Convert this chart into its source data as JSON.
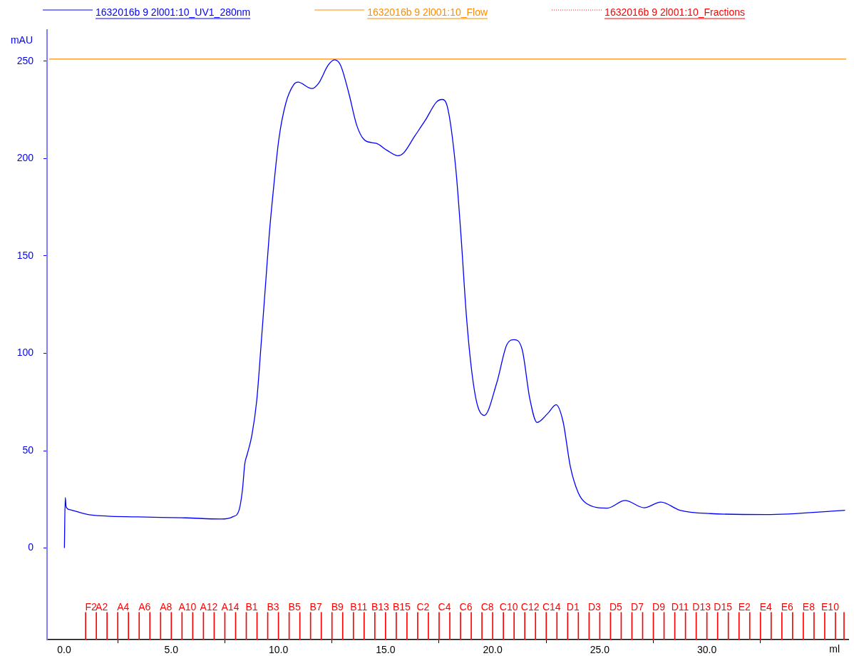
{
  "chart_data": {
    "type": "line",
    "xlabel": "ml",
    "ylabel": "mAU",
    "legend": "top left",
    "grid": false,
    "marker": "none",
    "line_style": "solid",
    "xlim": [
      -0.8,
      36.6
    ],
    "xticks": [
      {
        "value": 0,
        "label": "0.0"
      },
      {
        "value": 5,
        "label": "5.0"
      },
      {
        "value": 10,
        "label": "10.0"
      },
      {
        "value": 15,
        "label": "15.0"
      },
      {
        "value": 20,
        "label": "20.0"
      },
      {
        "value": 25,
        "label": "25.0"
      },
      {
        "value": 30,
        "label": "30.0"
      }
    ],
    "ylim": [
      -47,
      266
    ],
    "yticks": [
      0,
      50,
      100,
      150,
      200,
      250
    ],
    "series": [
      {
        "name": "1632016b 9 2l001:10_UV1_280nm",
        "color": "#0000ff",
        "x": [
          0.01,
          0.05,
          0.09,
          0.24,
          1.23,
          3.44,
          5.66,
          7.33,
          7.88,
          8.16,
          8.32,
          8.43,
          8.54,
          8.76,
          8.99,
          9.19,
          9.38,
          9.57,
          9.77,
          10.02,
          10.34,
          10.72,
          10.91,
          11.56,
          11.88,
          12.32,
          12.62,
          12.9,
          13.28,
          13.66,
          14.05,
          14.56,
          15.07,
          15.58,
          15.84,
          16.35,
          16.86,
          17.37,
          17.63,
          17.88,
          18.27,
          18.52,
          18.78,
          19.03,
          19.29,
          19.61,
          20.19,
          20.66,
          21.0,
          21.38,
          21.73,
          22.07,
          22.57,
          22.96,
          23.28,
          23.63,
          23.99,
          24.35,
          25.35,
          26.18,
          27.07,
          27.85,
          28.74,
          30.16,
          32.77,
          36.45
        ],
        "values": [
          0,
          26,
          21.2,
          19.8,
          17,
          16,
          15.5,
          14.9,
          16.1,
          19.4,
          29.8,
          43.2,
          48,
          57.8,
          76,
          104.3,
          132.5,
          160.7,
          184.5,
          209.9,
          228.2,
          238,
          239.2,
          235.9,
          238.7,
          247.9,
          250.7,
          247.9,
          233.8,
          216.9,
          209.2,
          207.8,
          204.2,
          201.4,
          202.8,
          211.3,
          219.7,
          228.9,
          230.3,
          226.8,
          195.8,
          160.7,
          118.4,
          90.2,
          73.3,
          68.1,
          84.8,
          104.4,
          107,
          101.8,
          76.9,
          64.5,
          69.1,
          73.6,
          65.2,
          41.6,
          28.5,
          23.1,
          20.5,
          24.4,
          20.7,
          23.6,
          19.4,
          17.7,
          17.2,
          19.4
        ]
      },
      {
        "name": "1632016b 9 2l001:10_Flow",
        "color": "#ff8c00",
        "x": [
          -0.7,
          36.5
        ],
        "values": [
          251,
          251
        ]
      },
      {
        "name": "1632016b 9 2l001:10_Fractions",
        "color": "#ff0000",
        "type": "bar",
        "line_style": "dotted",
        "x": [
          1.0,
          1.5,
          2.0,
          2.5,
          3.0,
          3.5,
          4.0,
          4.5,
          5.0,
          5.5,
          6.0,
          6.5,
          7.0,
          7.5,
          8.0,
          8.5,
          9.0,
          9.5,
          10.0,
          10.5,
          11.0,
          11.5,
          12.0,
          12.5,
          13.0,
          13.5,
          14.0,
          14.5,
          15.0,
          15.5,
          16.0,
          16.5,
          17.0,
          17.5,
          18.0,
          18.5,
          19.0,
          19.5,
          20.0,
          20.5,
          21.0,
          21.5,
          22.0,
          22.5,
          23.0,
          23.5,
          24.0,
          24.5,
          25.0,
          25.5,
          26.0,
          26.5,
          27.0,
          27.5,
          28.0,
          28.5,
          29.0,
          29.5,
          30.0,
          30.5,
          31.0,
          31.5,
          32.0,
          32.5,
          33.0,
          33.5,
          34.0,
          34.5,
          35.0,
          35.5,
          36.0,
          36.4
        ],
        "base": [
          -47,
          -47,
          -47,
          -47,
          -47,
          -47,
          -47,
          -47,
          -47,
          -47,
          -47,
          -47,
          -47,
          -47,
          -47,
          -47,
          -47,
          -47,
          -47,
          -47,
          -47,
          -47,
          -47,
          -47,
          -47,
          -47,
          -47,
          -47,
          -47,
          -47,
          -47,
          -47,
          -47,
          -47,
          -47,
          -47,
          -47,
          -47,
          -47,
          -47,
          -47,
          -47,
          -47,
          -47,
          -47,
          -47,
          -47,
          -47,
          -47,
          -47,
          -47,
          -47,
          -47,
          -47,
          -47,
          -47,
          -47,
          -47,
          -47,
          -47,
          -47,
          -47,
          -47,
          -47,
          -47,
          -47,
          -47,
          -47,
          -47,
          -47,
          -47,
          -47
        ],
        "values": [
          14,
          14,
          14,
          14,
          14,
          14,
          14,
          14,
          14,
          14,
          14,
          14,
          14,
          14,
          14,
          14,
          14,
          14,
          14,
          14,
          14,
          14,
          14,
          14,
          14,
          14,
          14,
          14,
          14,
          14,
          14,
          14,
          14,
          14,
          14,
          14,
          14,
          14,
          14,
          14,
          14,
          14,
          14,
          14,
          14,
          14,
          14,
          14,
          14,
          14,
          14,
          14,
          14,
          14,
          14,
          14,
          14,
          14,
          14,
          14,
          14,
          14,
          14,
          14,
          14,
          14,
          14,
          14,
          14,
          14,
          14,
          14
        ],
        "value_labels": [
          "F2",
          "A2",
          null,
          "A4",
          null,
          "A6",
          null,
          "A8",
          null,
          "A10",
          null,
          "A12",
          null,
          "A14",
          null,
          "B1",
          null,
          "B3",
          null,
          "B5",
          null,
          "B7",
          null,
          "B9",
          null,
          "B11",
          null,
          "B13",
          null,
          "B15",
          null,
          "C2",
          null,
          "C4",
          null,
          "C6",
          null,
          "C8",
          null,
          "C10",
          null,
          "C12",
          null,
          "C14",
          null,
          "D1",
          null,
          "D3",
          null,
          "D5",
          null,
          "D7",
          null,
          "D9",
          null,
          "D11",
          null,
          "D13",
          null,
          "D15",
          null,
          "E2",
          null,
          "E4",
          null,
          "E6",
          null,
          "E8",
          null,
          "E10",
          null,
          null
        ]
      }
    ]
  }
}
